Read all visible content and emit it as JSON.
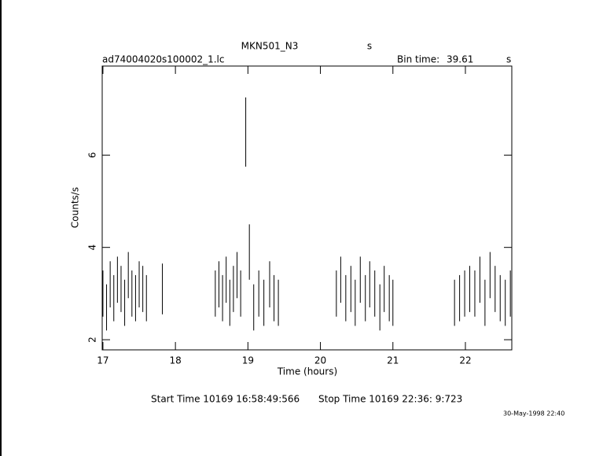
{
  "chart_data": {
    "type": "errorbar",
    "title": "MKN501_N3",
    "title_unit": "s",
    "subtitle": "ad74004020s100002_1.lc",
    "bin_label": "Bin time:",
    "bin_value": "39.61",
    "bin_unit": "s",
    "x_label": "Time (hours)",
    "y_label": "Counts/s",
    "start_time": "Start Time 10169 16:58:49:566",
    "stop_time": "Stop Time 10169 22:36: 9:723",
    "date_stamp": "30-May-1998 22:40",
    "xlim": [
      16.99,
      22.64
    ],
    "ylim": [
      1.78,
      7.93
    ],
    "xticks": [
      17,
      18,
      19,
      20,
      21,
      22
    ],
    "yticks": [
      2,
      4,
      6
    ],
    "series": [
      {
        "name": "MKN501_N3",
        "color": "#000000",
        "x": [
          17.0,
          17.05,
          17.1,
          17.15,
          17.2,
          17.25,
          17.3,
          17.35,
          17.4,
          17.45,
          17.5,
          17.55,
          17.6,
          17.82,
          18.55,
          18.6,
          18.65,
          18.7,
          18.75,
          18.8,
          18.85,
          18.9,
          18.97,
          19.02,
          19.08,
          19.15,
          19.22,
          19.3,
          19.36,
          19.42,
          20.22,
          20.28,
          20.35,
          20.42,
          20.48,
          20.55,
          20.62,
          20.68,
          20.75,
          20.82,
          20.88,
          20.95,
          21.0,
          21.85,
          21.92,
          21.99,
          22.06,
          22.13,
          22.2,
          22.27,
          22.34,
          22.41,
          22.48,
          22.55,
          22.62
        ],
        "values": [
          3.0,
          2.7,
          3.2,
          2.9,
          3.3,
          3.1,
          2.8,
          3.4,
          3.0,
          2.9,
          3.2,
          3.1,
          2.9,
          3.1,
          3.0,
          3.2,
          2.9,
          3.3,
          2.8,
          3.1,
          3.4,
          3.0,
          6.5,
          3.9,
          2.7,
          3.0,
          2.8,
          3.2,
          2.9,
          2.8,
          3.0,
          3.3,
          2.9,
          3.1,
          2.8,
          3.3,
          2.9,
          3.2,
          3.0,
          2.7,
          3.1,
          2.9,
          2.8,
          2.8,
          2.9,
          3.0,
          3.1,
          3.0,
          3.3,
          2.8,
          3.4,
          3.1,
          2.9,
          2.8,
          3.0
        ],
        "errors": [
          0.5,
          0.5,
          0.5,
          0.5,
          0.5,
          0.5,
          0.5,
          0.5,
          0.5,
          0.5,
          0.5,
          0.5,
          0.5,
          0.55,
          0.5,
          0.5,
          0.5,
          0.5,
          0.5,
          0.5,
          0.5,
          0.5,
          0.75,
          0.6,
          0.5,
          0.5,
          0.5,
          0.5,
          0.5,
          0.5,
          0.5,
          0.5,
          0.5,
          0.5,
          0.5,
          0.5,
          0.5,
          0.5,
          0.5,
          0.5,
          0.5,
          0.5,
          0.5,
          0.5,
          0.5,
          0.5,
          0.5,
          0.5,
          0.5,
          0.5,
          0.5,
          0.5,
          0.5,
          0.5,
          0.5
        ]
      }
    ]
  }
}
